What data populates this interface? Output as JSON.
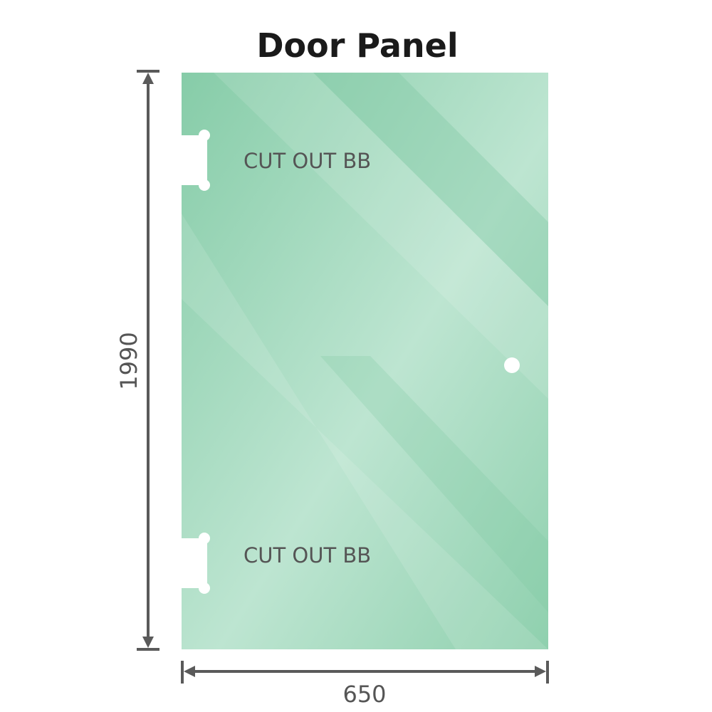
{
  "title": "Door Panel",
  "cutout_top_label": "CUT OUT BB",
  "cutout_bottom_label": "CUT OUT BB",
  "height_dimension": "1990",
  "width_dimension": "650",
  "colors": {
    "glass": "#8fd0ae",
    "glass_light": "#bfe6d2",
    "dimension_line": "#5a5a5a",
    "text": "#555555"
  }
}
